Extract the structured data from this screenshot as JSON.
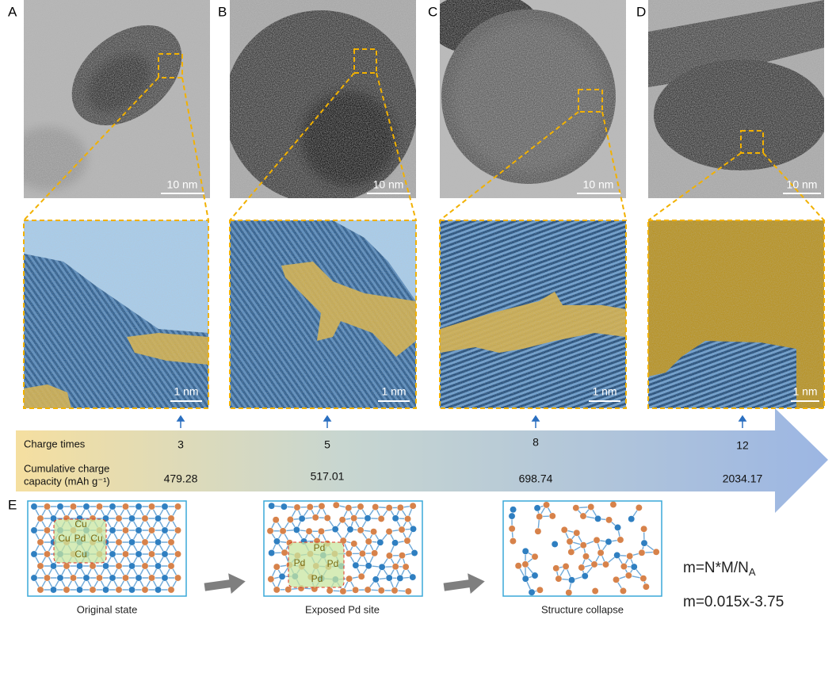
{
  "panels": [
    {
      "label": "A",
      "scale_top": "10 nm",
      "scale_bottom": "1 nm"
    },
    {
      "label": "B",
      "scale_top": "10 nm",
      "scale_bottom": "1 nm"
    },
    {
      "label": "C",
      "scale_top": "10 nm",
      "scale_bottom": "1 nm"
    },
    {
      "label": "D",
      "scale_top": "10 nm",
      "scale_bottom": "1 nm"
    }
  ],
  "timeline": {
    "row_labels": [
      "Charge times",
      "Cumulative charge",
      "capacity (mAh g⁻¹)"
    ],
    "charge_times": [
      3,
      5,
      8,
      12
    ],
    "capacities": [
      479.28,
      517.01,
      698.74,
      2034.17
    ]
  },
  "panel_e": {
    "label": "E",
    "structures": [
      {
        "caption": "Original state",
        "sites": [
          "Cu",
          "Cu",
          "Pd",
          "Cu",
          "Cu"
        ]
      },
      {
        "caption": "Exposed Pd site",
        "sites": [
          "Pd",
          "Pd",
          "Pd",
          "Pd"
        ]
      },
      {
        "caption": "Structure collapse"
      }
    ]
  },
  "formulas": [
    {
      "text": "m=N*M/N",
      "subscript": "A"
    },
    {
      "text": "m=0.015x-3.75"
    }
  ]
}
